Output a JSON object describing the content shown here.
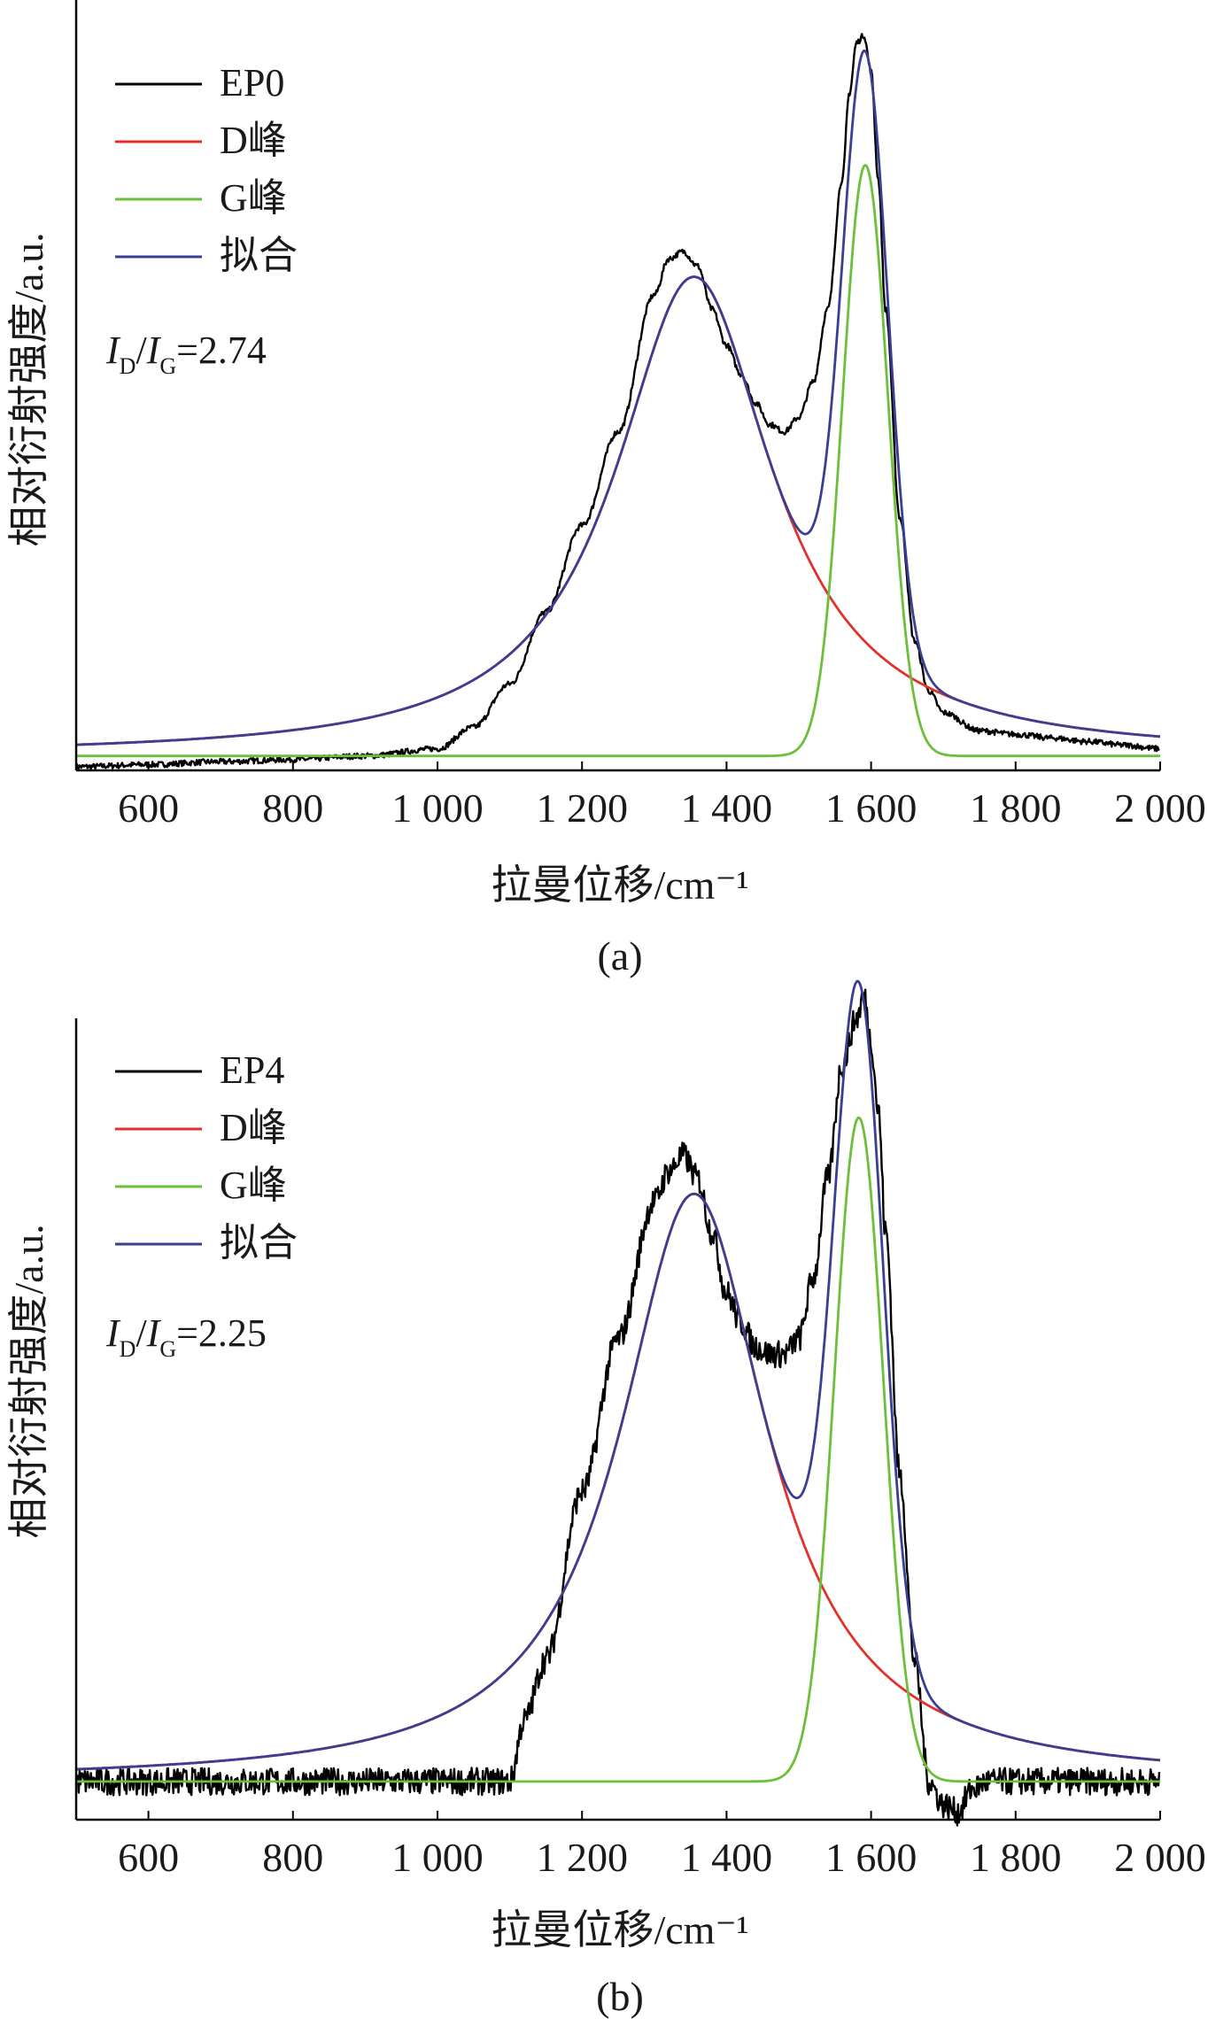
{
  "chart_data": [
    {
      "type": "line",
      "panel_label": "(a)",
      "xlabel": "拉曼位移/cm⁻¹",
      "ylabel": "相对衍射强度/a.u.",
      "xlim": [
        500,
        2000
      ],
      "ylim": [
        -0.02,
        1.0
      ],
      "xticks": [
        600,
        800,
        1000,
        1200,
        1400,
        1600,
        1800,
        2000
      ],
      "xtick_labels": [
        "600",
        "800",
        "1 000",
        "1 200",
        "1 400",
        "1 600",
        "1 800",
        "2 000"
      ],
      "yticks_visible": false,
      "ratio": {
        "I": "I",
        "D": "D",
        "G": "G",
        "text": "=2.74"
      },
      "legend_position": "top-left",
      "series": [
        {
          "name": "EP0",
          "color": "#000000",
          "noise": 0.004,
          "x": [
            500,
            600,
            700,
            800,
            900,
            1000,
            1050,
            1100,
            1150,
            1200,
            1250,
            1300,
            1320,
            1340,
            1360,
            1380,
            1400,
            1420,
            1440,
            1460,
            1480,
            1500,
            1520,
            1540,
            1560,
            1570,
            1580,
            1590,
            1600,
            1610,
            1620,
            1640,
            1660,
            1680,
            1700,
            1750,
            1800,
            1850,
            1900,
            1950,
            2000
          ],
          "y": [
            -0.015,
            -0.012,
            -0.008,
            -0.005,
            0.0,
            0.01,
            0.04,
            0.1,
            0.2,
            0.32,
            0.45,
            0.64,
            0.69,
            0.7,
            0.68,
            0.62,
            0.57,
            0.53,
            0.49,
            0.46,
            0.45,
            0.47,
            0.52,
            0.62,
            0.8,
            0.92,
            0.99,
            1.0,
            0.95,
            0.8,
            0.62,
            0.33,
            0.16,
            0.09,
            0.06,
            0.035,
            0.03,
            0.025,
            0.02,
            0.015,
            0.01
          ]
        },
        {
          "name": "D峰",
          "color": "#e0312a",
          "curve": "lorentz",
          "center": 1355,
          "width": 265,
          "amplitude": 0.665
        },
        {
          "name": "G峰",
          "color": "#6cbf3a",
          "curve": "gauss",
          "center": 1592,
          "width": 74,
          "amplitude": 0.82
        },
        {
          "name": "拟合",
          "color": "#3b3f92",
          "curve": "sum"
        }
      ]
    },
    {
      "type": "line",
      "panel_label": "(b)",
      "xlabel": "拉曼位移/cm⁻¹",
      "ylabel": "相对衍射强度/a.u.",
      "xlim": [
        500,
        2000
      ],
      "ylim": [
        -0.05,
        1.0
      ],
      "xticks": [
        600,
        800,
        1000,
        1200,
        1400,
        1600,
        1800,
        2000
      ],
      "xtick_labels": [
        "600",
        "800",
        "1 000",
        "1 200",
        "1 400",
        "1 600",
        "1 800",
        "2 000"
      ],
      "yticks_visible": false,
      "ratio": {
        "I": "I",
        "D": "D",
        "G": "G",
        "text": "=2.25"
      },
      "legend_position": "top-left",
      "series": [
        {
          "name": "EP4",
          "color": "#000000",
          "noise": 0.018,
          "x": [
            500,
            600,
            700,
            800,
            900,
            1000,
            1050,
            1100,
            1120,
            1150,
            1200,
            1250,
            1300,
            1320,
            1340,
            1360,
            1380,
            1400,
            1420,
            1440,
            1460,
            1480,
            1500,
            1520,
            1540,
            1560,
            1580,
            1590,
            1600,
            1610,
            1620,
            1640,
            1660,
            1680,
            1700,
            1720,
            1740,
            1760,
            1800,
            1900,
            2000
          ],
          "y": [
            0.0,
            0.0,
            0.0,
            0.0,
            0.0,
            0.0,
            0.0,
            0.0,
            0.08,
            0.16,
            0.38,
            0.58,
            0.76,
            0.8,
            0.82,
            0.79,
            0.72,
            0.64,
            0.6,
            0.57,
            0.56,
            0.56,
            0.58,
            0.66,
            0.79,
            0.94,
            1.0,
            1.03,
            0.97,
            0.88,
            0.72,
            0.4,
            0.16,
            0.0,
            -0.03,
            -0.04,
            -0.01,
            0.0,
            0.0,
            0.0,
            0.0
          ]
        },
        {
          "name": "D峰",
          "color": "#e0312a",
          "curve": "lorentz",
          "center": 1355,
          "width": 250,
          "amplitude": 0.77
        },
        {
          "name": "G峰",
          "color": "#6cbf3a",
          "curve": "gauss",
          "center": 1583,
          "width": 80,
          "amplitude": 0.87
        },
        {
          "name": "拟合",
          "color": "#3b3f92",
          "curve": "sum"
        }
      ]
    }
  ]
}
